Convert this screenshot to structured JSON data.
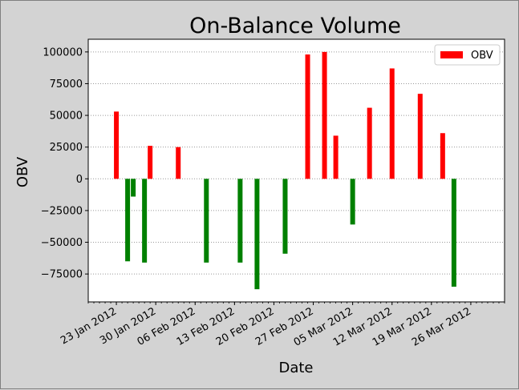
{
  "chart_data": {
    "type": "bar",
    "title": "On-Balance Volume",
    "xlabel": "Date",
    "ylabel": "OBV",
    "legend": {
      "label": "OBV",
      "placement": "top-right"
    },
    "grid": "horizontal dotted",
    "ylim": [
      -97000,
      110000
    ],
    "xlim": [
      "2012-01-18",
      "2012-04-01"
    ],
    "y_ticks": [
      -75000,
      -50000,
      -25000,
      0,
      25000,
      50000,
      75000,
      100000
    ],
    "y_tick_labels": [
      "−75000",
      "−50000",
      "−25000",
      "0",
      "25000",
      "50000",
      "75000",
      "100000"
    ],
    "x_ticks": [
      "2012-01-23",
      "2012-01-30",
      "2012-02-06",
      "2012-02-13",
      "2012-02-20",
      "2012-02-27",
      "2012-03-05",
      "2012-03-12",
      "2012-03-19",
      "2012-03-26"
    ],
    "x_tick_labels": [
      "23 Jan 2012",
      "30 Jan 2012",
      "06 Feb 2012",
      "13 Feb 2012",
      "20 Feb 2012",
      "27 Feb 2012",
      "05 Mar 2012",
      "12 Mar 2012",
      "19 Mar 2012",
      "26 Mar 2012"
    ],
    "colors": {
      "positive": "#ff0000",
      "negative": "#008000"
    },
    "series": [
      {
        "name": "OBV",
        "points": [
          {
            "x": "2012-01-23",
            "y": 53000
          },
          {
            "x": "2012-01-25",
            "y": -65000
          },
          {
            "x": "2012-01-26",
            "y": -14000
          },
          {
            "x": "2012-01-28",
            "y": -66000
          },
          {
            "x": "2012-01-29",
            "y": 26000
          },
          {
            "x": "2012-02-03",
            "y": 25000
          },
          {
            "x": "2012-02-08",
            "y": -66000
          },
          {
            "x": "2012-02-14",
            "y": -66000
          },
          {
            "x": "2012-02-17",
            "y": -87000
          },
          {
            "x": "2012-02-22",
            "y": -59000
          },
          {
            "x": "2012-02-26",
            "y": 98000
          },
          {
            "x": "2012-02-29",
            "y": 100000
          },
          {
            "x": "2012-03-02",
            "y": 34000
          },
          {
            "x": "2012-03-05",
            "y": -36000
          },
          {
            "x": "2012-03-08",
            "y": 56000
          },
          {
            "x": "2012-03-12",
            "y": 87000
          },
          {
            "x": "2012-03-17",
            "y": 67000
          },
          {
            "x": "2012-03-21",
            "y": 36000
          },
          {
            "x": "2012-03-23",
            "y": -85000
          }
        ]
      }
    ]
  }
}
